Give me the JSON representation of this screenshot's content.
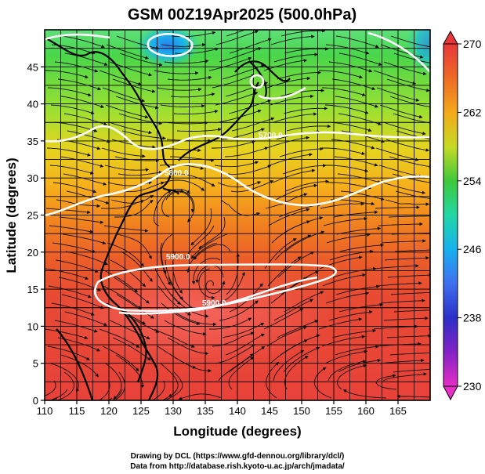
{
  "title": "GSM 00Z19Apr2025 (500.0hPa)",
  "map": {
    "xlabel": "Longitude (degrees)",
    "ylabel": "Latitude  (degrees)",
    "x_ticks": [
      "110",
      "115",
      "120",
      "125",
      "130",
      "135",
      "140",
      "145",
      "150",
      "155",
      "160",
      "165"
    ],
    "y_ticks": [
      "0",
      "5",
      "10",
      "15",
      "20",
      "25",
      "30",
      "35",
      "40",
      "45"
    ],
    "lon_range": [
      110,
      170
    ],
    "lat_range": [
      0,
      50
    ],
    "contour_labels": [
      "5700.0",
      "5800.0",
      "5900.0",
      "5900.0"
    ]
  },
  "colorbar": {
    "ticks": [
      "270",
      "262",
      "254",
      "246",
      "238",
      "230"
    ],
    "range": [
      230,
      270
    ],
    "colors": {
      "c270": "#e8373a",
      "c266": "#ef6a25",
      "c262": "#f4a91c",
      "c258": "#c6da25",
      "c254": "#3ec83a",
      "c250": "#22d7a6",
      "c246": "#17b1ef",
      "c242": "#3e6ff0",
      "c238": "#2c2fc8",
      "c234": "#8323c6",
      "c230": "#e72ec7"
    }
  },
  "credits": {
    "line1": "Drawing by DCL (https://www.gfd-dennou.org/library/dcl/)",
    "line2": "Data from http://database.rish.kyoto-u.ac.jp/arch/jmadata/"
  }
}
